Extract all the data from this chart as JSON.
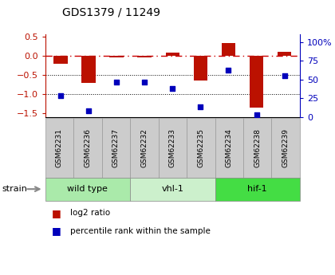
{
  "title": "GDS1379 / 11249",
  "samples": [
    "GSM62231",
    "GSM62236",
    "GSM62237",
    "GSM62232",
    "GSM62233",
    "GSM62235",
    "GSM62234",
    "GSM62238",
    "GSM62239"
  ],
  "log2_ratio": [
    -0.22,
    -0.72,
    -0.05,
    -0.05,
    0.08,
    -0.65,
    0.32,
    -1.35,
    0.1
  ],
  "percentile_rank": [
    28,
    8,
    46,
    46,
    38,
    13,
    62,
    3,
    55
  ],
  "groups": [
    {
      "label": "wild type",
      "start": 0,
      "end": 3,
      "color": "#aaeaaa"
    },
    {
      "label": "vhl-1",
      "start": 3,
      "end": 6,
      "color": "#ccf0cc"
    },
    {
      "label": "hif-1",
      "start": 6,
      "end": 9,
      "color": "#44dd44"
    }
  ],
  "ylim_left": [
    -1.6,
    0.55
  ],
  "ylim_right": [
    0,
    110
  ],
  "yticks_left": [
    -1.5,
    -1.0,
    -0.5,
    0.0,
    0.5
  ],
  "yticks_right": [
    0,
    25,
    50,
    75,
    100
  ],
  "yticklabels_right": [
    "0",
    "25",
    "50",
    "75",
    "100%"
  ],
  "hline_0_color": "#cc0000",
  "hline_dotted_vals": [
    -0.5,
    -1.0
  ],
  "bar_color": "#bb1100",
  "dot_color": "#0000bb",
  "bar_width": 0.5,
  "legend_items": [
    {
      "label": "log2 ratio",
      "color": "#bb1100"
    },
    {
      "label": "percentile rank within the sample",
      "color": "#0000bb"
    }
  ]
}
